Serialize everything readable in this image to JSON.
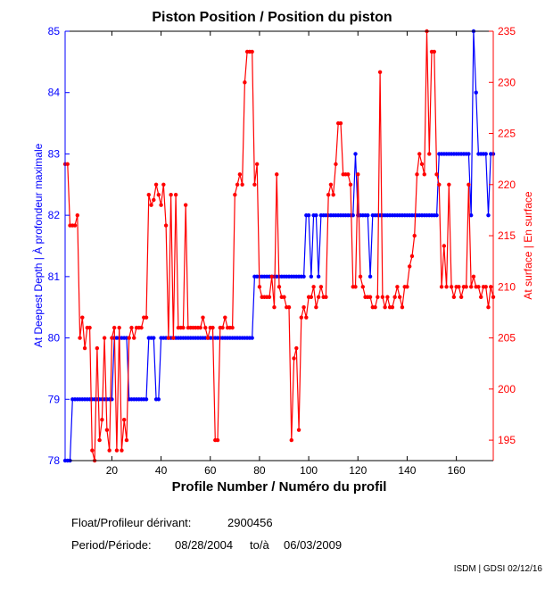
{
  "chart_data": {
    "type": "line",
    "title": "Piston Position / Position du piston",
    "xlabel": "Profile Number / Numéro du profil",
    "ylabel_left": "At Deepest Depth | À profondeur maximale",
    "ylabel_right": "At surface | En surface",
    "xlim": [
      1,
      175
    ],
    "ylim_left": [
      78,
      85
    ],
    "ylim_right": [
      193,
      235
    ],
    "xticks": [
      20,
      40,
      60,
      80,
      100,
      120,
      140,
      160
    ],
    "yticks_left": [
      78,
      79,
      80,
      81,
      82,
      83,
      84,
      85
    ],
    "yticks_right": [
      195,
      200,
      205,
      210,
      215,
      220,
      225,
      230,
      235
    ],
    "grid": false,
    "series": [
      {
        "name": "At Deepest Depth",
        "axis": "left",
        "color": "#0000ff",
        "values": [
          78,
          78,
          78,
          79,
          79,
          79,
          79,
          79,
          79,
          79,
          79,
          79,
          79,
          79,
          79,
          79,
          79,
          79,
          79,
          79,
          80,
          80,
          80,
          80,
          80,
          80,
          79,
          79,
          79,
          79,
          79,
          79,
          79,
          79,
          80,
          80,
          80,
          79,
          79,
          80,
          80,
          80,
          80,
          80,
          80,
          80,
          80,
          80,
          80,
          80,
          80,
          80,
          80,
          80,
          80,
          80,
          80,
          80,
          80,
          80,
          80,
          80,
          80,
          80,
          80,
          80,
          80,
          80,
          80,
          80,
          80,
          80,
          80,
          80,
          80,
          80,
          80,
          81,
          81,
          81,
          81,
          81,
          81,
          81,
          81,
          81,
          81,
          81,
          81,
          81,
          81,
          81,
          81,
          81,
          81,
          81,
          81,
          81,
          82,
          82,
          81,
          82,
          82,
          81,
          82,
          82,
          82,
          82,
          82,
          82,
          82,
          82,
          82,
          82,
          82,
          82,
          82,
          82,
          83,
          82,
          82,
          82,
          82,
          82,
          81,
          82,
          82,
          82,
          82,
          82,
          82,
          82,
          82,
          82,
          82,
          82,
          82,
          82,
          82,
          82,
          82,
          82,
          82,
          82,
          82,
          82,
          82,
          82,
          82,
          82,
          82,
          82,
          83,
          83,
          83,
          83,
          83,
          83,
          83,
          83,
          83,
          83,
          83,
          83,
          83,
          82,
          85,
          84,
          83,
          83,
          83,
          83,
          82,
          83,
          83
        ]
      },
      {
        "name": "At surface",
        "axis": "right",
        "color": "#ff0000",
        "values": [
          222,
          222,
          216,
          216,
          216,
          217,
          205,
          207,
          204,
          206,
          206,
          194,
          193,
          204,
          195,
          197,
          205,
          196,
          194,
          205,
          206,
          194,
          206,
          194,
          197,
          195,
          205,
          206,
          205,
          206,
          206,
          206,
          207,
          207,
          219,
          218,
          218.5,
          220,
          219,
          218,
          220,
          216,
          205,
          219,
          205,
          219,
          206,
          206,
          206,
          218,
          206,
          206,
          206,
          206,
          206,
          206,
          207,
          206,
          205,
          206,
          206,
          195,
          195,
          206,
          206,
          207,
          206,
          206,
          206,
          219,
          220,
          221,
          220,
          230,
          233,
          233,
          233,
          220,
          222,
          210,
          209,
          209,
          209,
          209,
          211,
          208,
          221,
          210,
          209,
          209,
          208,
          208,
          195,
          203,
          204,
          196,
          207,
          208,
          207,
          209,
          209,
          210,
          208,
          209,
          210,
          209,
          209,
          219,
          220,
          219,
          222,
          226,
          226,
          221,
          221,
          221,
          220,
          210,
          210,
          221,
          211,
          210,
          209,
          209,
          209,
          208,
          208,
          209,
          231,
          209,
          208,
          209,
          208,
          208,
          209,
          210,
          209,
          208,
          210,
          210,
          212,
          213,
          215,
          221,
          223,
          222,
          221,
          235,
          223,
          233,
          233,
          221,
          220,
          210,
          214,
          210,
          220,
          210,
          209,
          210,
          210,
          209,
          210,
          210,
          220,
          210,
          211,
          210,
          210,
          209,
          210,
          210,
          208,
          210,
          209
        ]
      }
    ]
  },
  "footer": {
    "float_label": "Float/Profileur dérivant:",
    "float_id": "2900456",
    "period_label": "Period/Période:",
    "period_start": "08/28/2004",
    "period_sep": "to/à",
    "period_end": "06/03/2009",
    "credit": "ISDM | GDSI 02/12/16"
  }
}
